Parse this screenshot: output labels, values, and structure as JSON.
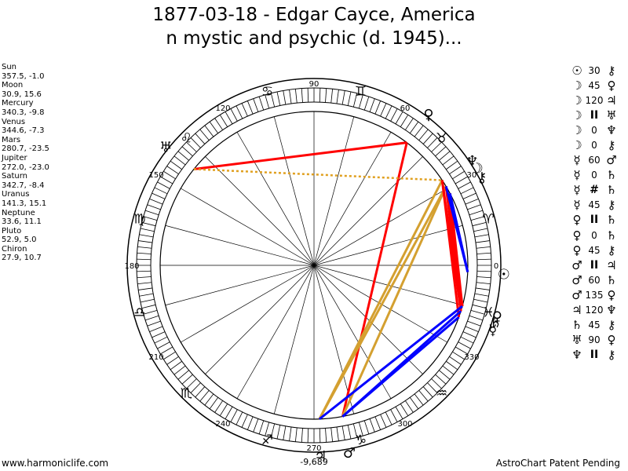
{
  "title": {
    "line1": "1877-03-18 - Edgar Cayce, America",
    "line2": "n mystic and psychic (d. 1945)..."
  },
  "planets": [
    {
      "name": "Sun",
      "coords": "357.5, -1.0"
    },
    {
      "name": "Moon",
      "coords": "30.9, 15.6"
    },
    {
      "name": "Mercury",
      "coords": "340.3, -9.8"
    },
    {
      "name": "Venus",
      "coords": "344.6, -7.3"
    },
    {
      "name": "Mars",
      "coords": "280.7, -23.5"
    },
    {
      "name": "Jupiter",
      "coords": "272.0, -23.0"
    },
    {
      "name": "Saturn",
      "coords": "342.7, -8.4"
    },
    {
      "name": "Uranus",
      "coords": "141.3, 15.1"
    },
    {
      "name": "Neptune",
      "coords": "33.6, 11.1"
    },
    {
      "name": "Pluto",
      "coords": "52.9, 5.0"
    },
    {
      "name": "Chiron",
      "coords": "27.9, 10.7"
    }
  ],
  "aspects": [
    {
      "p1": "☉",
      "num": "30",
      "p2": "⚷"
    },
    {
      "p1": "☽",
      "num": "45",
      "p2": "♀"
    },
    {
      "p1": "☽",
      "num": "120",
      "p2": "♃"
    },
    {
      "p1": "☽",
      "num": "II",
      "p2": "♅"
    },
    {
      "p1": "☽",
      "num": "0",
      "p2": "♆"
    },
    {
      "p1": "☽",
      "num": "0",
      "p2": "⚷"
    },
    {
      "p1": "☿",
      "num": "60",
      "p2": "♂"
    },
    {
      "p1": "☿",
      "num": "0",
      "p2": "♄"
    },
    {
      "p1": "☿",
      "num": "#",
      "p2": "♄"
    },
    {
      "p1": "☿",
      "num": "45",
      "p2": "⚷"
    },
    {
      "p1": "♀",
      "num": "II",
      "p2": "♄"
    },
    {
      "p1": "♀",
      "num": "0",
      "p2": "♄"
    },
    {
      "p1": "♀",
      "num": "45",
      "p2": "⚷"
    },
    {
      "p1": "♂",
      "num": "II",
      "p2": "♃"
    },
    {
      "p1": "♂",
      "num": "60",
      "p2": "♄"
    },
    {
      "p1": "♂",
      "num": "135",
      "p2": "♀"
    },
    {
      "p1": "♃",
      "num": "120",
      "p2": "♆"
    },
    {
      "p1": "♄",
      "num": "45",
      "p2": "⚷"
    },
    {
      "p1": "♅",
      "num": "90",
      "p2": "♀"
    },
    {
      "p1": "♆",
      "num": "II",
      "p2": "⚷"
    }
  ],
  "wheel": {
    "degree_labels": [
      {
        "deg": 0,
        "text": "0"
      },
      {
        "deg": 30,
        "text": "30"
      },
      {
        "deg": 60,
        "text": "60"
      },
      {
        "deg": 90,
        "text": "90"
      },
      {
        "deg": 120,
        "text": "120"
      },
      {
        "deg": 150,
        "text": "150"
      },
      {
        "deg": 180,
        "text": "180"
      },
      {
        "deg": 210,
        "text": "210"
      },
      {
        "deg": 240,
        "text": "240"
      },
      {
        "deg": 270,
        "text": "270"
      },
      {
        "deg": 300,
        "text": "300"
      },
      {
        "deg": 330,
        "text": "330"
      }
    ],
    "zodiac_signs": [
      {
        "deg": 15,
        "glyph": "♈"
      },
      {
        "deg": 45,
        "glyph": "♉"
      },
      {
        "deg": 75,
        "glyph": "♊"
      },
      {
        "deg": 105,
        "glyph": "♋"
      },
      {
        "deg": 135,
        "glyph": "♌"
      },
      {
        "deg": 165,
        "glyph": "♍"
      },
      {
        "deg": 195,
        "glyph": "♎"
      },
      {
        "deg": 225,
        "glyph": "♏"
      },
      {
        "deg": 255,
        "glyph": "♐"
      },
      {
        "deg": 285,
        "glyph": "♑"
      },
      {
        "deg": 315,
        "glyph": "♒"
      },
      {
        "deg": 345,
        "glyph": "♓"
      }
    ],
    "bottom_value": "-9,689",
    "planet_markers": [
      {
        "deg": 357.5,
        "glyph": "☉"
      },
      {
        "deg": 30.9,
        "glyph": "☽"
      },
      {
        "deg": 340.3,
        "glyph": "☿"
      },
      {
        "deg": 344.6,
        "glyph": "♀"
      },
      {
        "deg": 280.7,
        "glyph": "♂"
      },
      {
        "deg": 272.0,
        "glyph": "♃"
      },
      {
        "deg": 342.7,
        "glyph": "♄"
      },
      {
        "deg": 141.3,
        "glyph": "♅"
      },
      {
        "deg": 33.6,
        "glyph": "♆"
      },
      {
        "deg": 52.9,
        "glyph": "♀"
      },
      {
        "deg": 27.9,
        "glyph": "⚷"
      }
    ],
    "aspect_lines": [
      {
        "from": 52.9,
        "to": 141.3,
        "color": "#ff0000",
        "style": "solid"
      },
      {
        "from": 52.9,
        "to": 280.7,
        "color": "#ff0000",
        "style": "solid"
      },
      {
        "from": 141.3,
        "to": 33.6,
        "color": "#e0a020",
        "style": "dotted"
      },
      {
        "from": 33.6,
        "to": 272.0,
        "color": "#d4a030",
        "style": "solid"
      },
      {
        "from": 30.9,
        "to": 272.0,
        "color": "#d4a030",
        "style": "solid"
      },
      {
        "from": 30.9,
        "to": 280.7,
        "color": "#d4a030",
        "style": "solid"
      },
      {
        "from": 30.9,
        "to": 342.7,
        "color": "#ff0000",
        "style": "solid"
      },
      {
        "from": 33.6,
        "to": 340.3,
        "color": "#ff0000",
        "style": "solid"
      },
      {
        "from": 27.9,
        "to": 342.7,
        "color": "#ff0000",
        "style": "solid"
      },
      {
        "from": 27.9,
        "to": 344.6,
        "color": "#ff0000",
        "style": "solid"
      },
      {
        "from": 30.9,
        "to": 344.6,
        "color": "#ff0000",
        "style": "solid"
      },
      {
        "from": 33.6,
        "to": 342.7,
        "color": "#ff0000",
        "style": "solid"
      },
      {
        "from": 27.9,
        "to": 357.5,
        "color": "#0000ff",
        "style": "solid"
      },
      {
        "from": 30.9,
        "to": 357.5,
        "color": "#0000ff",
        "style": "solid"
      },
      {
        "from": 340.3,
        "to": 280.7,
        "color": "#0000ff",
        "style": "solid"
      },
      {
        "from": 342.7,
        "to": 280.7,
        "color": "#0000ff",
        "style": "solid"
      },
      {
        "from": 344.6,
        "to": 272.0,
        "color": "#0000ff",
        "style": "solid"
      }
    ]
  },
  "footer": {
    "left": "www.harmoniclife.com",
    "right": "AstroChart Patent Pending"
  }
}
